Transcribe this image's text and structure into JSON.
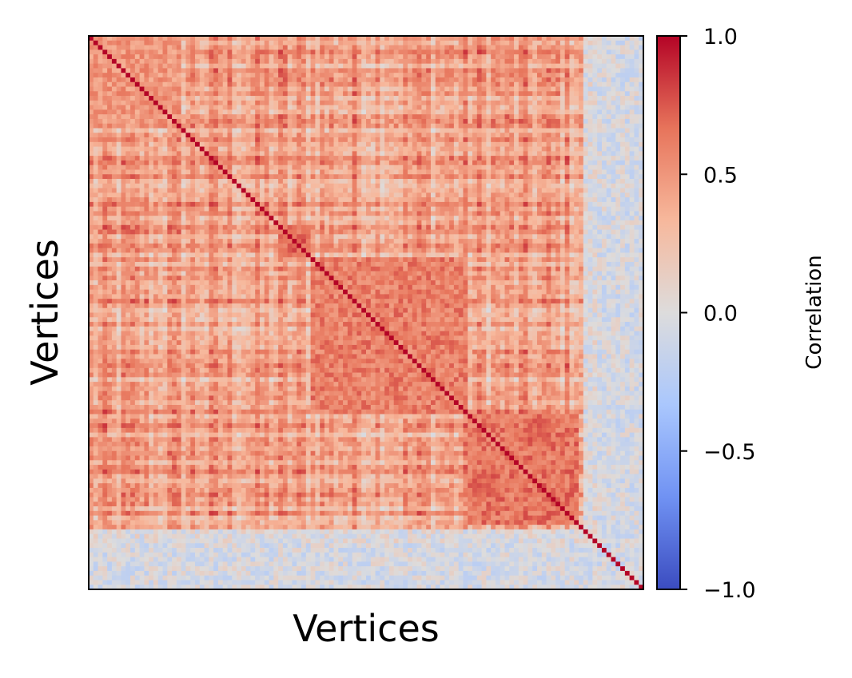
{
  "chart_data": {
    "type": "heatmap",
    "title": "",
    "xlabel": "Vertices",
    "ylabel": "Vertices",
    "colormap": "coolwarm",
    "colormap_stops": [
      "#3b4cc0",
      "#7092f3",
      "#aac7fd",
      "#dddcdc",
      "#f7b89c",
      "#e7745b",
      "#b40426"
    ],
    "value_range": [
      -1.0,
      1.0
    ],
    "n_vertices": 120,
    "diagonal_value": 1.0,
    "colorbar": {
      "label": "Correlation",
      "ticks": [
        1.0,
        0.5,
        0.0,
        -0.5,
        -1.0
      ],
      "tick_labels": [
        "1.0",
        "0.5",
        "0.0",
        "−0.5",
        "−1.0"
      ]
    },
    "block_structure": [
      {
        "vertices": [
          0,
          20
        ],
        "mean_correlation": 0.5
      },
      {
        "vertices": [
          41,
          48
        ],
        "mean_correlation": 0.7
      },
      {
        "vertices": [
          48,
          82
        ],
        "mean_correlation": 0.6
      },
      {
        "vertices": [
          82,
          106
        ],
        "mean_correlation": 0.65
      }
    ],
    "low_correlation_vertices": [
      {
        "vertices": [
          107,
          118
        ],
        "mean_correlation": 0.0
      },
      {
        "vertices": [
          110,
          120
        ],
        "mean_correlation": -0.05
      }
    ],
    "grid": false,
    "x_ticks_visible": false,
    "y_ticks_visible": false
  }
}
